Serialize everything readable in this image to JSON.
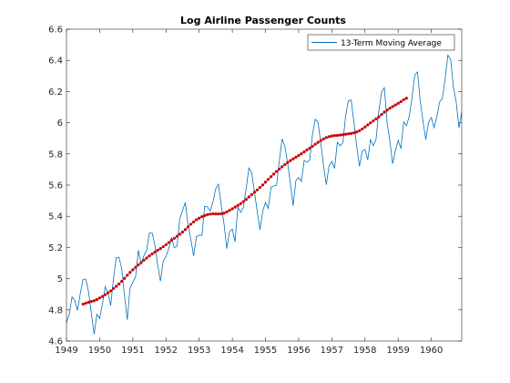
{
  "chart_data": {
    "type": "line",
    "title": "Log Airline Passenger Counts",
    "xlabel": "",
    "ylabel": "",
    "xlim": [
      1949,
      1960.917
    ],
    "ylim": [
      4.6,
      6.6
    ],
    "x_ticks": [
      1949,
      1950,
      1951,
      1952,
      1953,
      1954,
      1955,
      1956,
      1957,
      1958,
      1959,
      1960
    ],
    "y_ticks": [
      4.6,
      4.8,
      5.0,
      5.2,
      5.4,
      5.6,
      5.8,
      6.0,
      6.2,
      6.4,
      6.6
    ],
    "x_tick_labels": [
      "1949",
      "1950",
      "1951",
      "1952",
      "1953",
      "1954",
      "1955",
      "1956",
      "1957",
      "1958",
      "1959",
      "1960"
    ],
    "y_tick_labels": [
      "4.6",
      "4.8",
      "5",
      "5.2",
      "5.4",
      "5.6",
      "5.8",
      "6",
      "6.2",
      "6.4",
      "6.6"
    ],
    "grid": false,
    "legend": {
      "position": "top-right",
      "entries": [
        "13-Term Moving Average"
      ]
    },
    "x_start": 1949,
    "x_step": 0.0833333,
    "series": [
      {
        "name": "",
        "color": "#0072BD",
        "values": [
          4.718,
          4.771,
          4.883,
          4.86,
          4.796,
          4.905,
          4.997,
          4.997,
          4.913,
          4.779,
          4.644,
          4.771,
          4.745,
          4.836,
          4.949,
          4.906,
          4.828,
          4.997,
          5.136,
          5.136,
          5.063,
          4.89,
          4.736,
          4.942,
          4.977,
          5.011,
          5.182,
          5.094,
          5.147,
          5.182,
          5.293,
          5.293,
          5.215,
          5.088,
          4.984,
          5.112,
          5.142,
          5.193,
          5.263,
          5.199,
          5.209,
          5.384,
          5.438,
          5.489,
          5.342,
          5.252,
          5.147,
          5.268,
          5.279,
          5.278,
          5.464,
          5.46,
          5.434,
          5.493,
          5.576,
          5.606,
          5.468,
          5.352,
          5.193,
          5.303,
          5.318,
          5.236,
          5.46,
          5.425,
          5.455,
          5.576,
          5.71,
          5.68,
          5.557,
          5.434,
          5.313,
          5.434,
          5.489,
          5.451,
          5.587,
          5.595,
          5.598,
          5.753,
          5.897,
          5.849,
          5.743,
          5.613,
          5.468,
          5.628,
          5.649,
          5.624,
          5.759,
          5.746,
          5.762,
          5.924,
          6.023,
          6.004,
          5.872,
          5.724,
          5.602,
          5.724,
          5.753,
          5.707,
          5.875,
          5.852,
          5.872,
          6.045,
          6.142,
          6.146,
          6.001,
          5.849,
          5.72,
          5.817,
          5.829,
          5.762,
          5.892,
          5.852,
          5.894,
          6.075,
          6.197,
          6.225,
          6.001,
          5.883,
          5.737,
          5.82,
          5.886,
          5.834,
          6.006,
          5.981,
          6.04,
          6.157,
          6.306,
          6.326,
          6.138,
          6.009,
          5.892,
          6.004,
          6.033,
          5.969,
          6.038,
          6.133,
          6.157,
          6.282,
          6.433,
          6.407,
          6.23,
          6.133,
          5.966,
          6.068
        ]
      },
      {
        "name": "13-Term Moving Average",
        "color": "#0072BD",
        "values": [
          4.837,
          4.843,
          4.849,
          4.854,
          4.859,
          4.866,
          4.876,
          4.886,
          4.897,
          4.909,
          4.922,
          4.937,
          4.951,
          4.966,
          4.983,
          5.002,
          5.022,
          5.04,
          5.057,
          5.073,
          5.088,
          5.103,
          5.118,
          5.132,
          5.146,
          5.159,
          5.171,
          5.182,
          5.193,
          5.205,
          5.218,
          5.232,
          5.246,
          5.259,
          5.272,
          5.285,
          5.299,
          5.315,
          5.332,
          5.349,
          5.364,
          5.378,
          5.388,
          5.398,
          5.405,
          5.411,
          5.414,
          5.416,
          5.415,
          5.415,
          5.416,
          5.42,
          5.428,
          5.438,
          5.448,
          5.459,
          5.47,
          5.481,
          5.494,
          5.508,
          5.524,
          5.539,
          5.554,
          5.569,
          5.585,
          5.601,
          5.619,
          5.637,
          5.654,
          5.671,
          5.688,
          5.703,
          5.718,
          5.732,
          5.745,
          5.757,
          5.768,
          5.779,
          5.79,
          5.801,
          5.813,
          5.825,
          5.837,
          5.849,
          5.862,
          5.874,
          5.886,
          5.896,
          5.905,
          5.911,
          5.915,
          5.918,
          5.919,
          5.921,
          5.923,
          5.926,
          5.929,
          5.931,
          5.935,
          5.941,
          5.949,
          5.96,
          5.973,
          5.986,
          5.999,
          6.012,
          6.025,
          6.038,
          6.053,
          6.068,
          6.081,
          6.093,
          6.104,
          6.114,
          6.124,
          6.135,
          6.148,
          6.157
        ]
      }
    ]
  }
}
